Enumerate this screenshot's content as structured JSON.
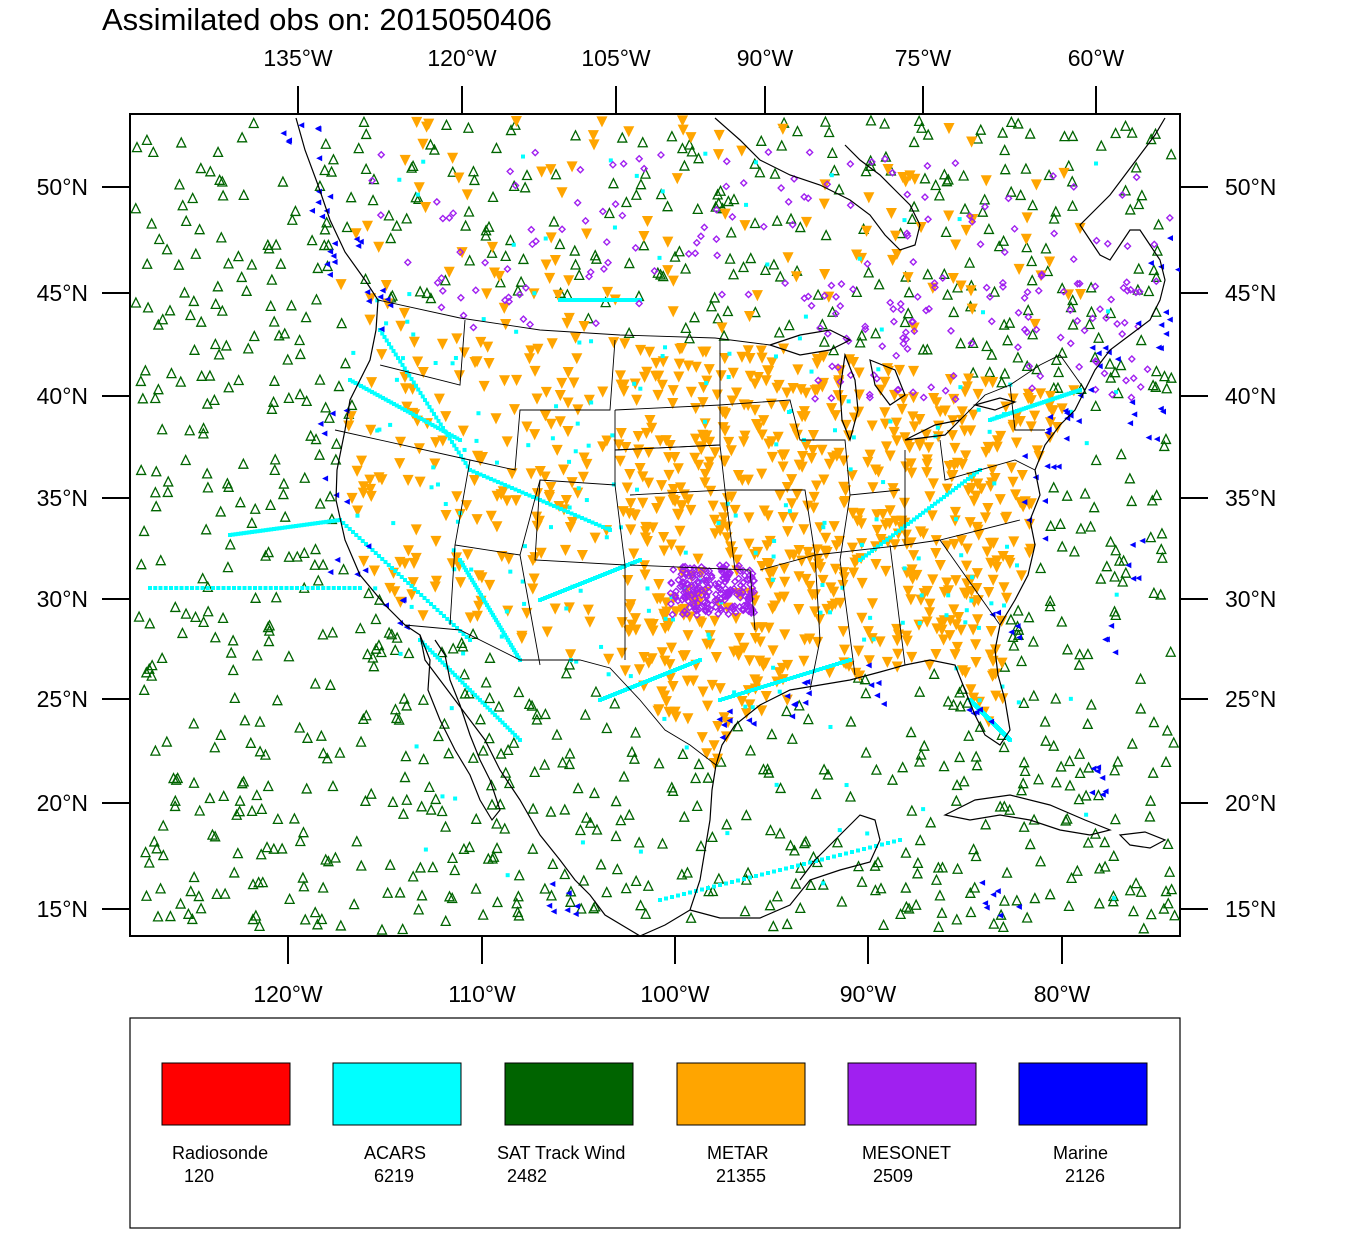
{
  "title": "Assimilated obs on: 2015050406",
  "axes": {
    "top_lon_labels": [
      "135°W",
      "120°W",
      "105°W",
      "90°W",
      "75°W",
      "60°W"
    ],
    "bottom_lon_labels": [
      "120°W",
      "110°W",
      "100°W",
      "90°W",
      "80°W"
    ],
    "lat_labels": [
      "50°N",
      "45°N",
      "40°N",
      "35°N",
      "30°N",
      "25°N",
      "20°N",
      "15°N"
    ]
  },
  "legend": [
    {
      "name": "Radiosonde",
      "count": "120",
      "color": "#ff0000"
    },
    {
      "name": "ACARS",
      "count": "6219",
      "color": "#00ffff"
    },
    {
      "name": "SAT Track Wind",
      "count": "2482",
      "color": "#006400"
    },
    {
      "name": "METAR",
      "count": "21355",
      "color": "#ffa500"
    },
    {
      "name": "MESONET",
      "count": "2509",
      "color": "#a020f0"
    },
    {
      "name": "Marine",
      "count": "2126",
      "color": "#0000ff"
    }
  ],
  "map": {
    "projection": "lambert-conformal",
    "lat_range": [
      15,
      53
    ],
    "lon_range": [
      -128,
      -58
    ],
    "coastline_color": "#000000",
    "border_color": "#000000"
  }
}
